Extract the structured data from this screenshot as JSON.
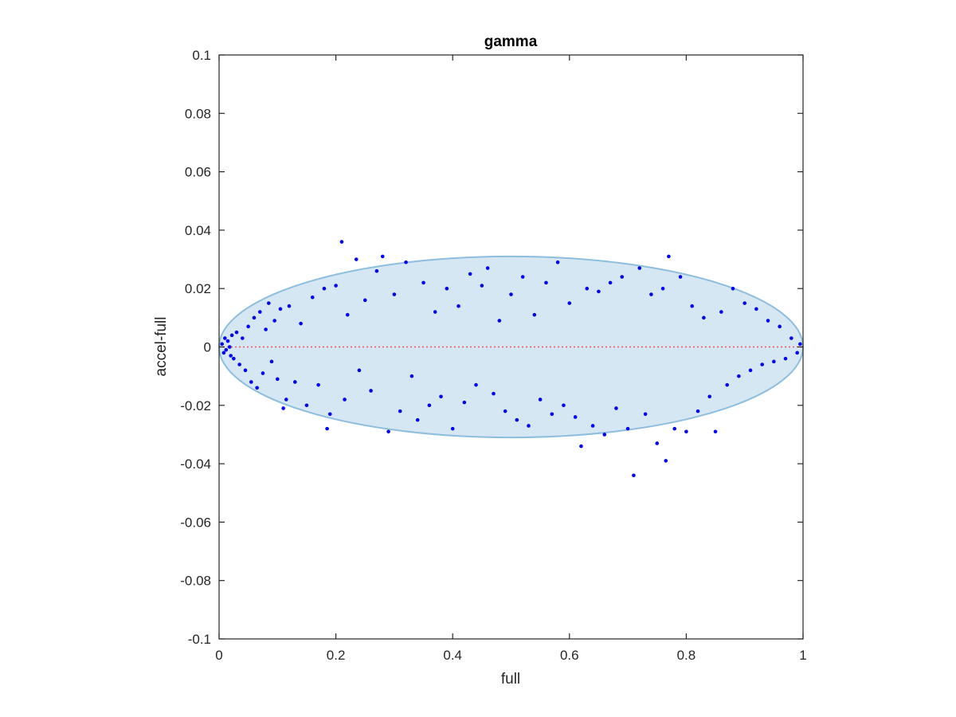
{
  "chart_data": {
    "type": "scatter",
    "title": "gamma",
    "xlabel": "full",
    "ylabel": "accel-full",
    "xlim": [
      0,
      1
    ],
    "ylim": [
      -0.1,
      0.1
    ],
    "xticks": [
      0,
      0.2,
      0.4,
      0.6,
      0.8,
      1
    ],
    "xtick_labels": [
      "0",
      "0.2",
      "0.4",
      "0.6",
      "0.8",
      "1"
    ],
    "yticks": [
      0.1,
      0.08,
      0.06,
      0.04,
      0.02,
      0,
      -0.02,
      -0.04,
      -0.06,
      -0.08,
      -0.1
    ],
    "ytick_labels": [
      "0.1",
      "0.08",
      "0.06",
      "0.04",
      "0.02",
      "0",
      "-0.02",
      "-0.04",
      "-0.06",
      "-0.08",
      "-0.1"
    ],
    "grid": false,
    "legend": "none",
    "ellipse": {
      "center": [
        0.5,
        0
      ],
      "semi_x": 0.5,
      "semi_y": 0.031
    },
    "reference_line_y": 0,
    "colors": {
      "points": "#0000ee",
      "ellipse_fill": "#d6e7f4",
      "ellipse_stroke": "#8dbedd",
      "reference_line": "#ff4d4d",
      "axis": "#262626"
    },
    "series": [
      {
        "points": [
          [
            0.005,
            0.001
          ],
          [
            0.008,
            -0.002
          ],
          [
            0.01,
            0.003
          ],
          [
            0.012,
            -0.001
          ],
          [
            0.015,
            0.002
          ],
          [
            0.018,
            0.0
          ],
          [
            0.02,
            -0.003
          ],
          [
            0.022,
            0.004
          ],
          [
            0.025,
            -0.004
          ],
          [
            0.03,
            0.005
          ],
          [
            0.035,
            -0.006
          ],
          [
            0.04,
            0.003
          ],
          [
            0.045,
            -0.008
          ],
          [
            0.05,
            0.007
          ],
          [
            0.055,
            -0.012
          ],
          [
            0.06,
            0.01
          ],
          [
            0.065,
            -0.014
          ],
          [
            0.07,
            0.012
          ],
          [
            0.075,
            -0.009
          ],
          [
            0.08,
            0.006
          ],
          [
            0.085,
            0.015
          ],
          [
            0.09,
            -0.005
          ],
          [
            0.095,
            0.009
          ],
          [
            0.1,
            -0.011
          ],
          [
            0.105,
            0.013
          ],
          [
            0.11,
            -0.021
          ],
          [
            0.115,
            -0.018
          ],
          [
            0.12,
            0.014
          ],
          [
            0.13,
            -0.012
          ],
          [
            0.14,
            0.008
          ],
          [
            0.15,
            -0.02
          ],
          [
            0.16,
            0.017
          ],
          [
            0.17,
            -0.013
          ],
          [
            0.18,
            0.02
          ],
          [
            0.185,
            -0.028
          ],
          [
            0.19,
            -0.023
          ],
          [
            0.2,
            0.021
          ],
          [
            0.21,
            0.036
          ],
          [
            0.215,
            -0.018
          ],
          [
            0.22,
            0.011
          ],
          [
            0.235,
            0.03
          ],
          [
            0.24,
            -0.008
          ],
          [
            0.25,
            0.016
          ],
          [
            0.26,
            -0.015
          ],
          [
            0.27,
            0.026
          ],
          [
            0.28,
            0.031
          ],
          [
            0.29,
            -0.029
          ],
          [
            0.3,
            0.018
          ],
          [
            0.31,
            -0.022
          ],
          [
            0.32,
            0.029
          ],
          [
            0.33,
            -0.01
          ],
          [
            0.34,
            -0.025
          ],
          [
            0.35,
            0.022
          ],
          [
            0.36,
            -0.02
          ],
          [
            0.37,
            0.012
          ],
          [
            0.38,
            -0.017
          ],
          [
            0.39,
            0.02
          ],
          [
            0.4,
            -0.028
          ],
          [
            0.41,
            0.014
          ],
          [
            0.42,
            -0.019
          ],
          [
            0.43,
            0.025
          ],
          [
            0.44,
            -0.013
          ],
          [
            0.45,
            0.021
          ],
          [
            0.46,
            0.027
          ],
          [
            0.47,
            -0.016
          ],
          [
            0.48,
            0.009
          ],
          [
            0.49,
            -0.022
          ],
          [
            0.5,
            0.018
          ],
          [
            0.51,
            -0.025
          ],
          [
            0.52,
            0.024
          ],
          [
            0.53,
            -0.027
          ],
          [
            0.54,
            0.011
          ],
          [
            0.55,
            -0.018
          ],
          [
            0.56,
            0.022
          ],
          [
            0.57,
            -0.023
          ],
          [
            0.58,
            0.029
          ],
          [
            0.59,
            -0.02
          ],
          [
            0.6,
            0.015
          ],
          [
            0.61,
            -0.024
          ],
          [
            0.62,
            -0.034
          ],
          [
            0.63,
            0.02
          ],
          [
            0.64,
            -0.027
          ],
          [
            0.65,
            0.019
          ],
          [
            0.66,
            -0.03
          ],
          [
            0.67,
            0.022
          ],
          [
            0.68,
            -0.021
          ],
          [
            0.69,
            0.024
          ],
          [
            0.7,
            -0.028
          ],
          [
            0.71,
            -0.044
          ],
          [
            0.72,
            0.027
          ],
          [
            0.73,
            -0.023
          ],
          [
            0.74,
            0.018
          ],
          [
            0.75,
            -0.033
          ],
          [
            0.76,
            0.02
          ],
          [
            0.765,
            -0.039
          ],
          [
            0.77,
            0.031
          ],
          [
            0.78,
            -0.028
          ],
          [
            0.79,
            0.024
          ],
          [
            0.8,
            -0.029
          ],
          [
            0.81,
            0.014
          ],
          [
            0.82,
            -0.022
          ],
          [
            0.83,
            0.01
          ],
          [
            0.84,
            -0.017
          ],
          [
            0.85,
            -0.029
          ],
          [
            0.86,
            0.012
          ],
          [
            0.87,
            -0.013
          ],
          [
            0.88,
            0.02
          ],
          [
            0.89,
            -0.01
          ],
          [
            0.9,
            0.015
          ],
          [
            0.91,
            -0.008
          ],
          [
            0.92,
            0.013
          ],
          [
            0.93,
            -0.006
          ],
          [
            0.94,
            0.009
          ],
          [
            0.95,
            -0.005
          ],
          [
            0.96,
            0.007
          ],
          [
            0.97,
            -0.004
          ],
          [
            0.98,
            0.003
          ],
          [
            0.99,
            -0.002
          ],
          [
            0.995,
            0.001
          ]
        ]
      }
    ]
  }
}
